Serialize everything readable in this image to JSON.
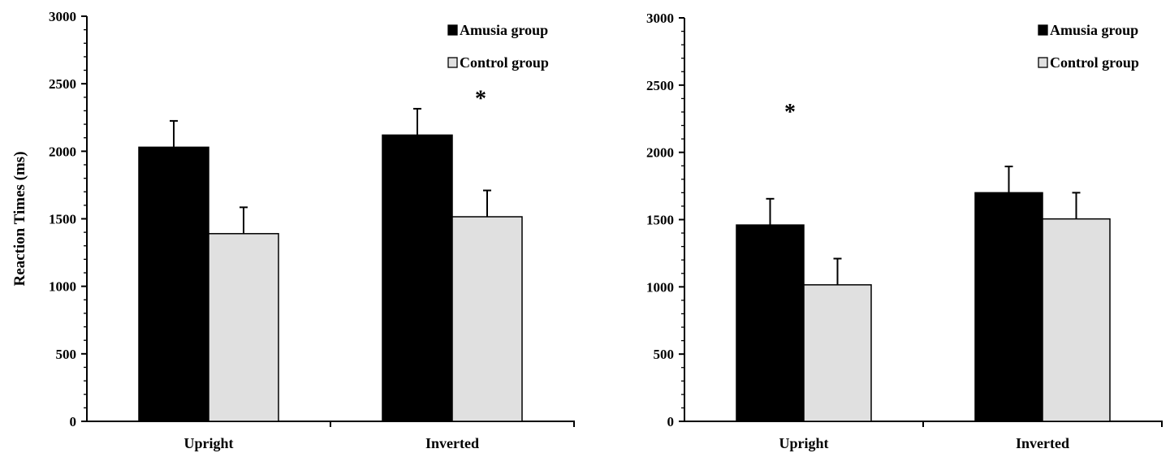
{
  "chart_data": [
    {
      "type": "bar",
      "title": "",
      "xlabel": "",
      "ylabel": "Reaction  Times (ms)",
      "ylim": [
        0,
        3000
      ],
      "yticks": [
        "0",
        "500",
        "1000",
        "1500",
        "2000",
        "2500",
        "3000"
      ],
      "categories": [
        "Upright",
        "Inverted"
      ],
      "series": [
        {
          "name": "Amusia group",
          "color": "#000000",
          "values": [
            2030,
            2120
          ],
          "errors": [
            195,
            195
          ]
        },
        {
          "name": "Control group",
          "color": "#e0e0e0",
          "values": [
            1390,
            1515
          ],
          "errors": [
            195,
            195
          ]
        }
      ],
      "annotations": [
        {
          "text": "*",
          "category": "Inverted",
          "value": 2420
        }
      ],
      "legend": "top-right",
      "grid": false
    },
    {
      "type": "bar",
      "title": "",
      "xlabel": "",
      "ylabel": "",
      "ylim": [
        0,
        3000
      ],
      "yticks": [
        "0",
        "500",
        "1000",
        "1500",
        "2000",
        "2500",
        "3000"
      ],
      "categories": [
        "Upright",
        "Inverted"
      ],
      "series": [
        {
          "name": "Amusia group",
          "color": "#000000",
          "values": [
            1460,
            1700
          ],
          "errors": [
            195,
            195
          ]
        },
        {
          "name": "Control group",
          "color": "#e0e0e0",
          "values": [
            1015,
            1505
          ],
          "errors": [
            195,
            195
          ]
        }
      ],
      "annotations": [
        {
          "text": "*",
          "category": "Upright",
          "value": 2330
        }
      ],
      "legend": "top-right",
      "grid": false
    }
  ]
}
